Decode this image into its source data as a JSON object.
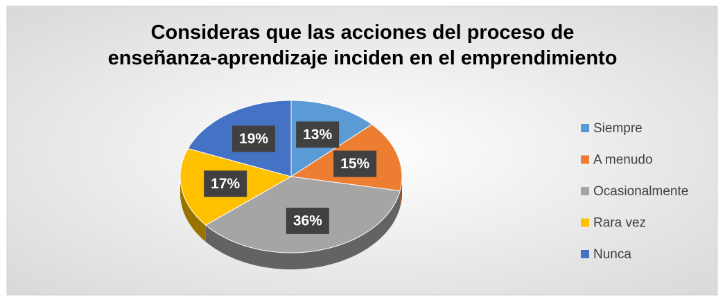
{
  "chart_data": {
    "type": "pie3d",
    "title": "Consideras que las acciones del proceso de enseñanza-aprendizaje inciden en el emprendimiento",
    "categories": [
      "Siempre",
      "A menudo",
      "Ocasionalmente",
      "Rara vez",
      "Nunca"
    ],
    "values": [
      13,
      15,
      36,
      17,
      19
    ],
    "value_labels": [
      "13%",
      "15%",
      "36%",
      "17%",
      "19%"
    ],
    "colors": [
      "#5b9bd5",
      "#ed7d31",
      "#a5a5a5",
      "#ffc000",
      "#4472c4"
    ],
    "legend": "right"
  }
}
